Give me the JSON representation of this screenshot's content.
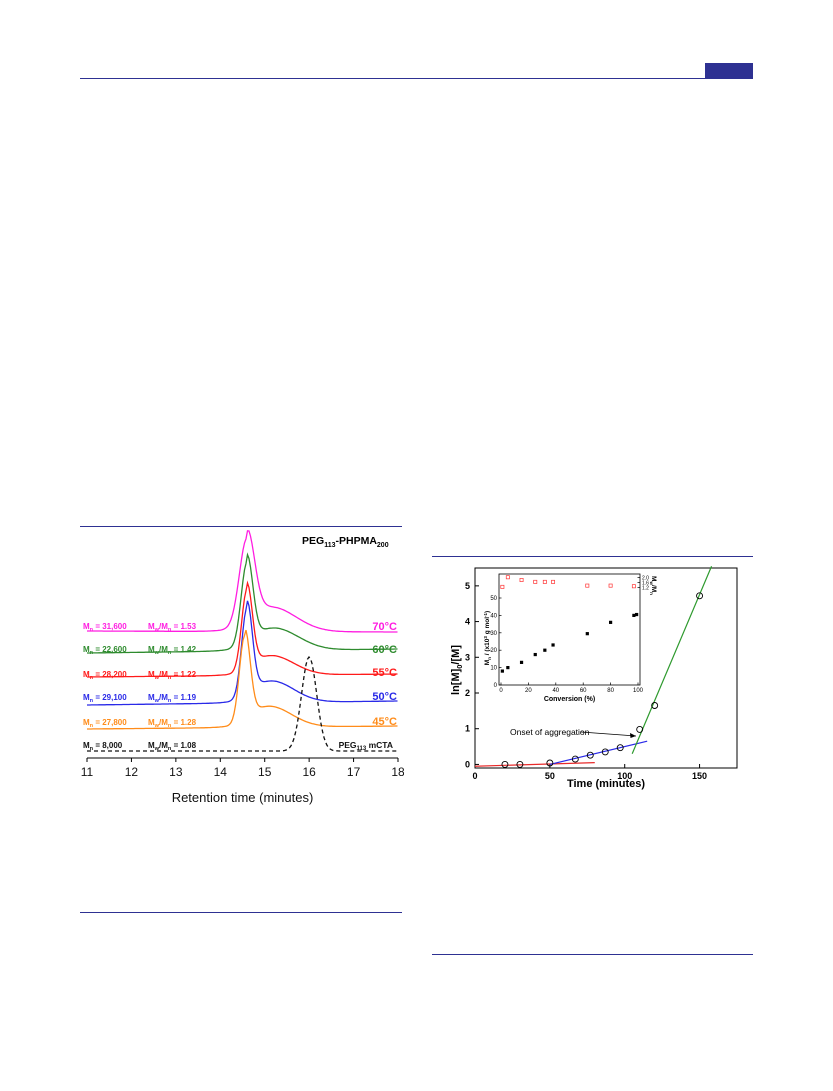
{
  "colors": {
    "rule": "#2e3192",
    "c70": "#ff1de1",
    "c60": "#2e8b2e",
    "c55": "#ff1a1a",
    "c50": "#2a2ae8",
    "c45": "#ff8c1a",
    "mcta": "#111111",
    "green_fit": "#2e9a2e",
    "blue_fit": "#2a2ae8",
    "red_fit": "#e82a2a",
    "inset_red": "#ff3333"
  },
  "chart_data": [
    {
      "type": "line",
      "title": "PEG113-PHPMA200",
      "title_parts": {
        "a": "PEG",
        "a_sub": "113",
        "b": "-PHPMA",
        "b_sub": "200"
      },
      "xlabel": "Retention time (minutes)",
      "xlim": [
        11,
        18
      ],
      "xticks": [
        "11",
        "12",
        "13",
        "14",
        "15",
        "16",
        "17",
        "18"
      ],
      "y_axis_shown": false,
      "series": [
        {
          "name": "70°C",
          "key": "c70",
          "color": "#ff1de1",
          "peak": 14.6,
          "Mn": "31,600",
          "PDI": "1.53",
          "mn_pre": "M",
          "mn_sub": "n",
          "mn_post": " = 31,600",
          "pdi_pre": "M",
          "pdi_sub1": "w",
          "pdi_mid": "/M",
          "pdi_sub2": "n",
          "pdi_post": " = 1.53"
        },
        {
          "name": "60°C",
          "key": "c60",
          "color": "#2e8b2e",
          "peak": 14.6,
          "Mn": "22,600",
          "PDI": "1.42",
          "mn_pre": "M",
          "mn_sub": "n",
          "mn_post": " = 22,600",
          "pdi_pre": "M",
          "pdi_sub1": "w",
          "pdi_mid": "/M",
          "pdi_sub2": "n",
          "pdi_post": " = 1.42"
        },
        {
          "name": "55°C",
          "key": "c55",
          "color": "#ff1a1a",
          "peak": 14.6,
          "Mn": "28,200",
          "PDI": "1.22",
          "mn_pre": "M",
          "mn_sub": "n",
          "mn_post": " = 28,200",
          "pdi_pre": "M",
          "pdi_sub1": "w",
          "pdi_mid": "/M",
          "pdi_sub2": "n",
          "pdi_post": " = 1.22"
        },
        {
          "name": "50°C",
          "key": "c50",
          "color": "#2a2ae8",
          "peak": 14.6,
          "Mn": "29,100",
          "PDI": "1.19",
          "mn_pre": "M",
          "mn_sub": "n",
          "mn_post": " = 29,100",
          "pdi_pre": "M",
          "pdi_sub1": "w",
          "pdi_mid": "/M",
          "pdi_sub2": "n",
          "pdi_post": " = 1.19"
        },
        {
          "name": "45°C",
          "key": "c45",
          "color": "#ff8c1a",
          "peak": 14.55,
          "Mn": "27,800",
          "PDI": "1.28",
          "mn_pre": "M",
          "mn_sub": "n",
          "mn_post": " = 27,800",
          "pdi_pre": "M",
          "pdi_sub1": "w",
          "pdi_mid": "/M",
          "pdi_sub2": "n",
          "pdi_post": " = 1.28"
        },
        {
          "name": "PEG113 mCTA",
          "key": "mcta",
          "color": "#111111",
          "dashed": true,
          "peak": 16.0,
          "Mn": "8,000",
          "PDI": "1.08",
          "mn_pre": "M",
          "mn_sub": "n",
          "mn_post": " = 8,000",
          "pdi_pre": "M",
          "pdi_sub1": "w",
          "pdi_mid": "/M",
          "pdi_sub2": "n",
          "pdi_post": " = 1.08",
          "label_a": "PEG",
          "label_sub": "113",
          "label_b": " mCTA"
        }
      ]
    },
    {
      "type": "scatter",
      "xlabel": "Time (minutes)",
      "ylabel": "ln[M]0/[M]",
      "ylabel_parts": {
        "a": "ln[M]",
        "sub": "0",
        "b": "/[M]"
      },
      "xlim": [
        0,
        175
      ],
      "ylim": [
        -0.1,
        5.5
      ],
      "xticks": [
        "0",
        "50",
        "100",
        "150"
      ],
      "yticks": [
        "0",
        "1",
        "2",
        "3",
        "4",
        "5"
      ],
      "points": [
        {
          "x": 20,
          "y": 0.0
        },
        {
          "x": 30,
          "y": 0.0
        },
        {
          "x": 50,
          "y": 0.04
        },
        {
          "x": 67,
          "y": 0.15
        },
        {
          "x": 77,
          "y": 0.26
        },
        {
          "x": 87,
          "y": 0.35
        },
        {
          "x": 97,
          "y": 0.47
        },
        {
          "x": 110,
          "y": 0.98
        },
        {
          "x": 120,
          "y": 1.65
        },
        {
          "x": 150,
          "y": 4.72
        }
      ],
      "fit_lines": [
        {
          "name": "red",
          "color": "#e82a2a",
          "x": [
            0,
            80
          ],
          "y": [
            -0.05,
            0.05
          ]
        },
        {
          "name": "blue",
          "color": "#2a2ae8",
          "x": [
            50,
            115
          ],
          "y": [
            0.0,
            0.65
          ]
        },
        {
          "name": "green",
          "color": "#2e9a2e",
          "x": [
            105,
            158
          ],
          "y": [
            0.3,
            5.55
          ]
        }
      ],
      "annotation": {
        "text": "Onset of aggregation",
        "x": 107,
        "y": 0.52
      },
      "inset": {
        "xlabel": "Conversion (%)",
        "ylabel": "Mn / (x10³ g mol⁻¹)",
        "ylabel_parts": {
          "a": "M",
          "sub": "n",
          "b": " / (x10",
          "sup1": "3",
          "c": " g mol",
          "sup2": "-1",
          "d": ")"
        },
        "y2label": "Mw/Mn",
        "y2label_parts": {
          "a": "M",
          "sub1": "w",
          "b": "/M",
          "sub2": "n"
        },
        "xlim": [
          0,
          100
        ],
        "ylim": [
          0,
          50
        ],
        "y2lim": [
          1.0,
          2.2
        ],
        "xticks": [
          "0",
          "20",
          "40",
          "60",
          "80",
          "100"
        ],
        "yticks": [
          "0",
          "10",
          "20",
          "30",
          "40",
          "50"
        ],
        "y2ticks": [
          "1.2",
          "1.6",
          "2.0"
        ],
        "mn_points": [
          {
            "x": 1,
            "y": 8
          },
          {
            "x": 5,
            "y": 10
          },
          {
            "x": 15,
            "y": 13
          },
          {
            "x": 25,
            "y": 17.5
          },
          {
            "x": 32,
            "y": 20
          },
          {
            "x": 38,
            "y": 23
          },
          {
            "x": 63,
            "y": 29.5
          },
          {
            "x": 80,
            "y": 36
          },
          {
            "x": 97,
            "y": 40
          },
          {
            "x": 99,
            "y": 40.5
          }
        ],
        "pdi_points": [
          {
            "x": 1,
            "y": 1.25
          },
          {
            "x": 5,
            "y": 2.02
          },
          {
            "x": 15,
            "y": 1.8
          },
          {
            "x": 25,
            "y": 1.65
          },
          {
            "x": 32,
            "y": 1.65
          },
          {
            "x": 38,
            "y": 1.65
          },
          {
            "x": 63,
            "y": 1.35
          },
          {
            "x": 80,
            "y": 1.35
          },
          {
            "x": 97,
            "y": 1.3
          }
        ]
      }
    }
  ]
}
